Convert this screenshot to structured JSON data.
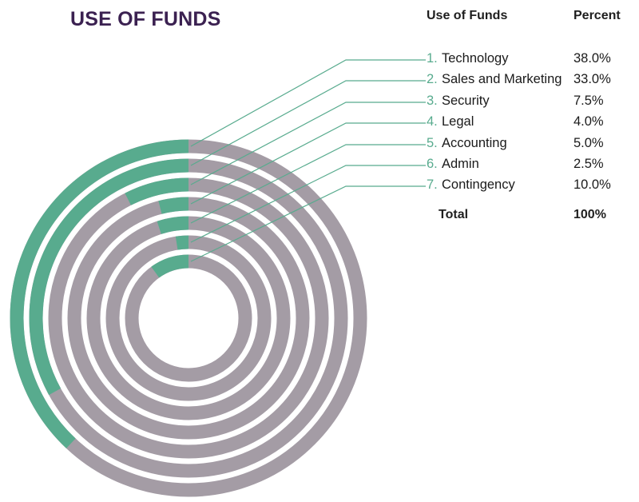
{
  "title": "USE OF FUNDS",
  "table_headers": {
    "category": "Use of Funds",
    "percent": "Percent"
  },
  "colors": {
    "highlight": "#58ab8e",
    "track": "#a49ca5",
    "leader": "#58ab8e"
  },
  "chart_data": {
    "type": "radial-bar",
    "title": "USE OF FUNDS",
    "categories": [
      "Technology",
      "Sales and Marketing",
      "Security",
      "Legal",
      "Accounting",
      "Admin",
      "Contingency"
    ],
    "numbers": [
      "1.",
      "2.",
      "3.",
      "4.",
      "5.",
      "6.",
      "7."
    ],
    "values": [
      38.0,
      33.0,
      7.5,
      4.0,
      5.0,
      2.5,
      10.0
    ],
    "value_labels": [
      "38.0%",
      "33.0%",
      "7.5%",
      "4.0%",
      "5.0%",
      "2.5%",
      "10.0%"
    ],
    "total_label": "Total",
    "total_value": "100%",
    "scale_max": 100
  }
}
